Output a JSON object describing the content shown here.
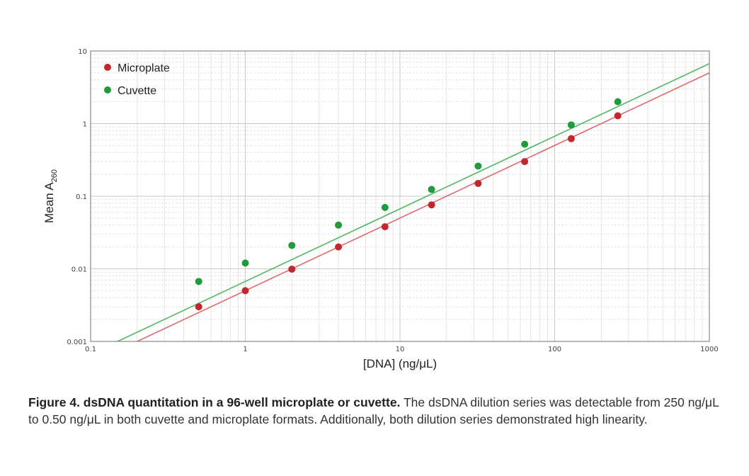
{
  "chart_data": {
    "type": "scatter",
    "x_scale": "log",
    "y_scale": "log",
    "xlim": [
      0.1,
      1000
    ],
    "ylim": [
      0.001,
      10
    ],
    "xlabel": "[DNA] (ng/μL)",
    "ylabel_main": "Mean A",
    "ylabel_sub": "260",
    "x_ticks": [
      "0.1",
      "1",
      "10",
      "100",
      "1000"
    ],
    "y_ticks": [
      "0.001",
      "0.01",
      "0.1",
      "1",
      "10"
    ],
    "grid": true,
    "legend_position": "top-left",
    "series": [
      {
        "name": "Microplate",
        "color": "#c0282d",
        "line_color": "#e0696d",
        "x": [
          0.5,
          1,
          2,
          4,
          8,
          16,
          32,
          64,
          128,
          256
        ],
        "y": [
          0.003,
          0.005,
          0.0099,
          0.02,
          0.038,
          0.076,
          0.15,
          0.3,
          0.62,
          1.28
        ],
        "fit_slope": 0.005
      },
      {
        "name": "Cuvette",
        "color": "#1f9a3c",
        "line_color": "#52b860",
        "x": [
          0.5,
          1,
          2,
          4,
          8,
          16,
          32,
          64,
          128,
          256
        ],
        "y": [
          0.0067,
          0.012,
          0.021,
          0.04,
          0.07,
          0.124,
          0.26,
          0.52,
          0.96,
          2.0
        ],
        "fit_slope": 0.0067
      }
    ]
  },
  "caption": {
    "bold": "Figure 4. dsDNA quantitation in a 96-well microplate or cuvette.",
    "text": " The dsDNA dilution series was detectable from 250 ng/μL to 0.50 ng/μL in both cuvette and microplate formats. Additionally, both dilution series demonstrated high linearity."
  }
}
